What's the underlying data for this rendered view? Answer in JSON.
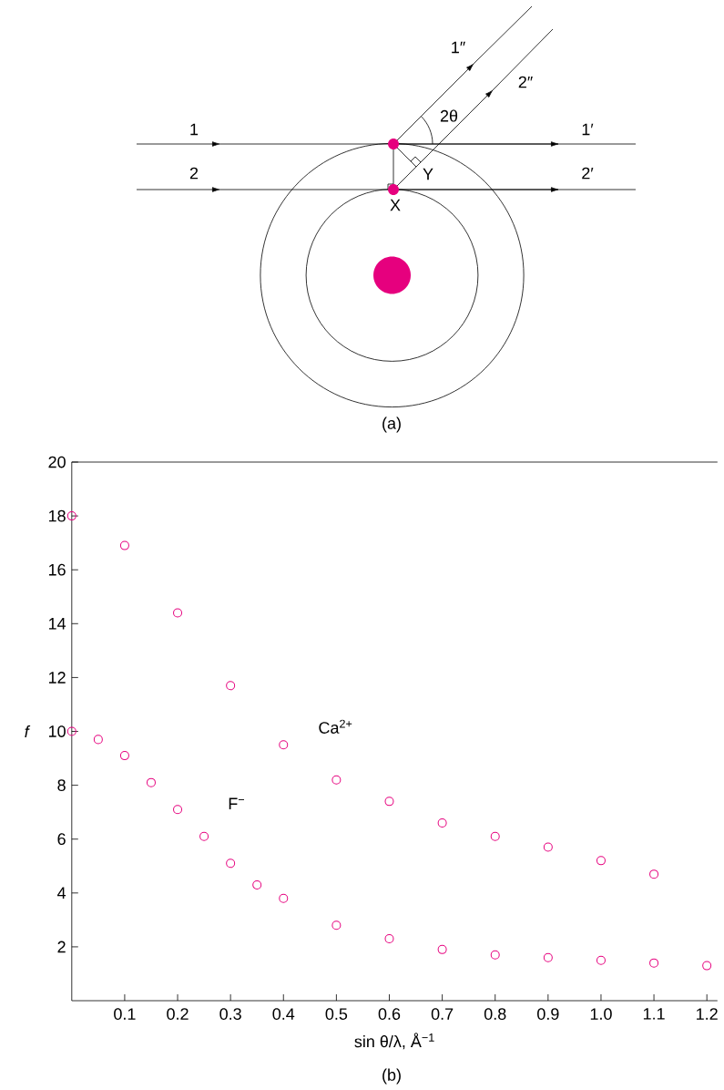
{
  "chart_data": {
    "type": "scatter",
    "xlabel": "sin θ/λ, Å$^{−1}$",
    "ylabel": "f",
    "xlim": [
      0,
      1.22
    ],
    "ylim": [
      0,
      20
    ],
    "xticks": [
      0.1,
      0.2,
      0.3,
      0.4,
      0.5,
      0.6,
      0.7,
      0.8,
      0.9,
      {
        "value": 1.0,
        "label": "1.0"
      },
      1.1,
      1.2
    ],
    "yticks": [
      2,
      4,
      6,
      8,
      10,
      12,
      14,
      16,
      18,
      20
    ],
    "marker": "circle",
    "series": [
      {
        "name": "Ca$^{2+}$",
        "color": "#e6007e",
        "x": [
          0,
          0.1,
          0.2,
          0.3,
          0.4,
          0.5,
          0.6,
          0.7,
          0.8,
          0.9,
          1.0,
          1.1
        ],
        "values": [
          18.0,
          16.9,
          14.4,
          11.7,
          9.5,
          8.2,
          7.4,
          6.6,
          6.1,
          5.7,
          5.2,
          4.7
        ]
      },
      {
        "name": "F$^{−}$",
        "color": "#e6007e",
        "x": [
          0,
          0.05,
          0.1,
          0.15,
          0.2,
          0.25,
          0.3,
          0.35,
          0.4,
          0.5,
          0.6,
          0.7,
          0.8,
          0.9,
          1.0,
          1.1,
          1.2
        ],
        "values": [
          10.0,
          9.7,
          9.1,
          8.1,
          7.1,
          6.1,
          5.1,
          4.3,
          3.8,
          2.8,
          2.3,
          1.9,
          1.7,
          1.6,
          1.5,
          1.4,
          1.3
        ]
      }
    ],
    "annotations": [
      "1",
      "2",
      "1″",
      "2″",
      "2θ",
      "1′",
      "2′",
      "X",
      "Y",
      "(a)",
      "(b)"
    ]
  }
}
